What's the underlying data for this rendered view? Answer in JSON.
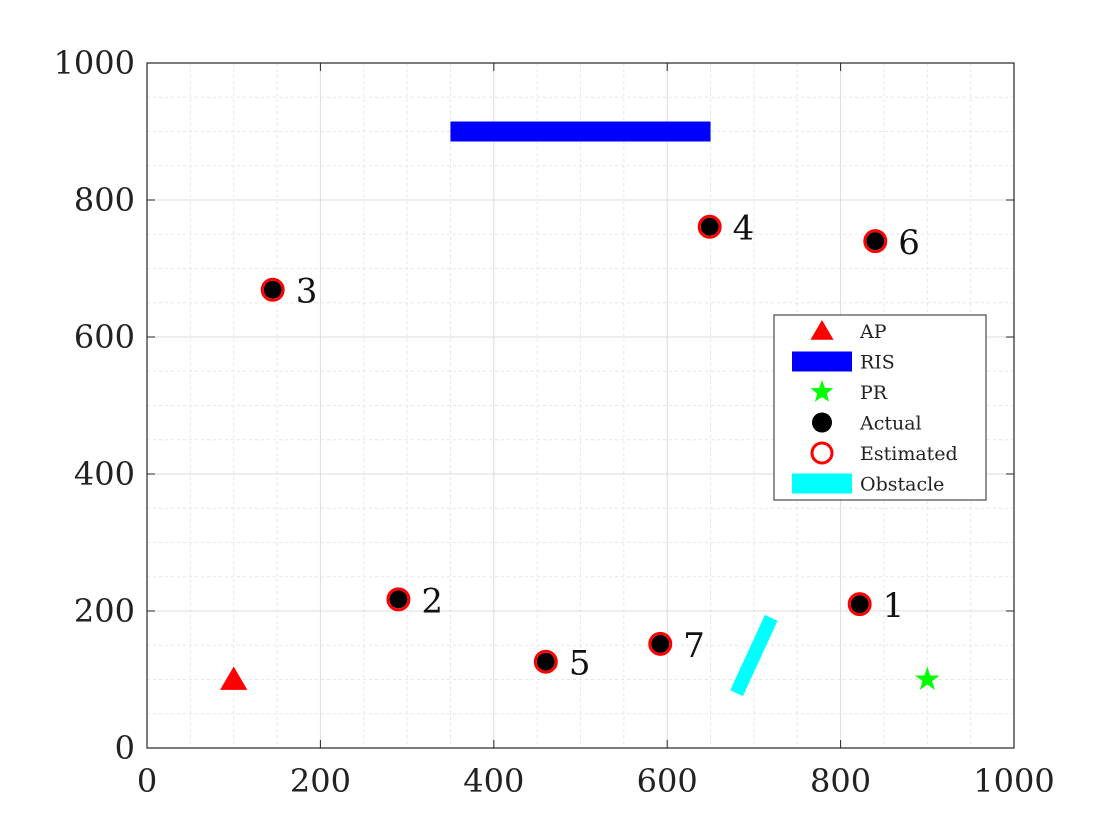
{
  "chart_data": {
    "type": "scatter",
    "title": "",
    "xlabel": "",
    "ylabel": "",
    "xlim": [
      0,
      1000
    ],
    "ylim": [
      0,
      1000
    ],
    "xticks": [
      "0",
      "200",
      "400",
      "600",
      "800",
      "1000"
    ],
    "yticks": [
      "0",
      "200",
      "400",
      "600",
      "800",
      "1000"
    ],
    "grid": "major and minor",
    "legend_position": "right",
    "ap": {
      "name": "AP",
      "x": 100,
      "y": 100,
      "color": "#ff0000",
      "marker": "triangle"
    },
    "ris": {
      "name": "RIS",
      "x": [
        350,
        650
      ],
      "y": [
        900,
        900
      ],
      "color": "#0000ff"
    },
    "pr": {
      "name": "PR",
      "x": 900,
      "y": 100,
      "color": "#00ff00",
      "marker": "star"
    },
    "obstacle": {
      "name": "Obstacle",
      "x": [
        680,
        720
      ],
      "y": [
        80,
        190
      ],
      "color": "#00ffff"
    },
    "actual": {
      "name": "Actual",
      "color": "#000000"
    },
    "estimated": {
      "name": "Estimated",
      "color": "#ff0000"
    },
    "users": [
      {
        "label": "1",
        "x": 822,
        "y": 210
      },
      {
        "label": "2",
        "x": 290,
        "y": 217
      },
      {
        "label": "3",
        "x": 145,
        "y": 669
      },
      {
        "label": "4",
        "x": 649,
        "y": 761
      },
      {
        "label": "5",
        "x": 460,
        "y": 126
      },
      {
        "label": "6",
        "x": 840,
        "y": 740
      },
      {
        "label": "7",
        "x": 592,
        "y": 152
      }
    ]
  }
}
